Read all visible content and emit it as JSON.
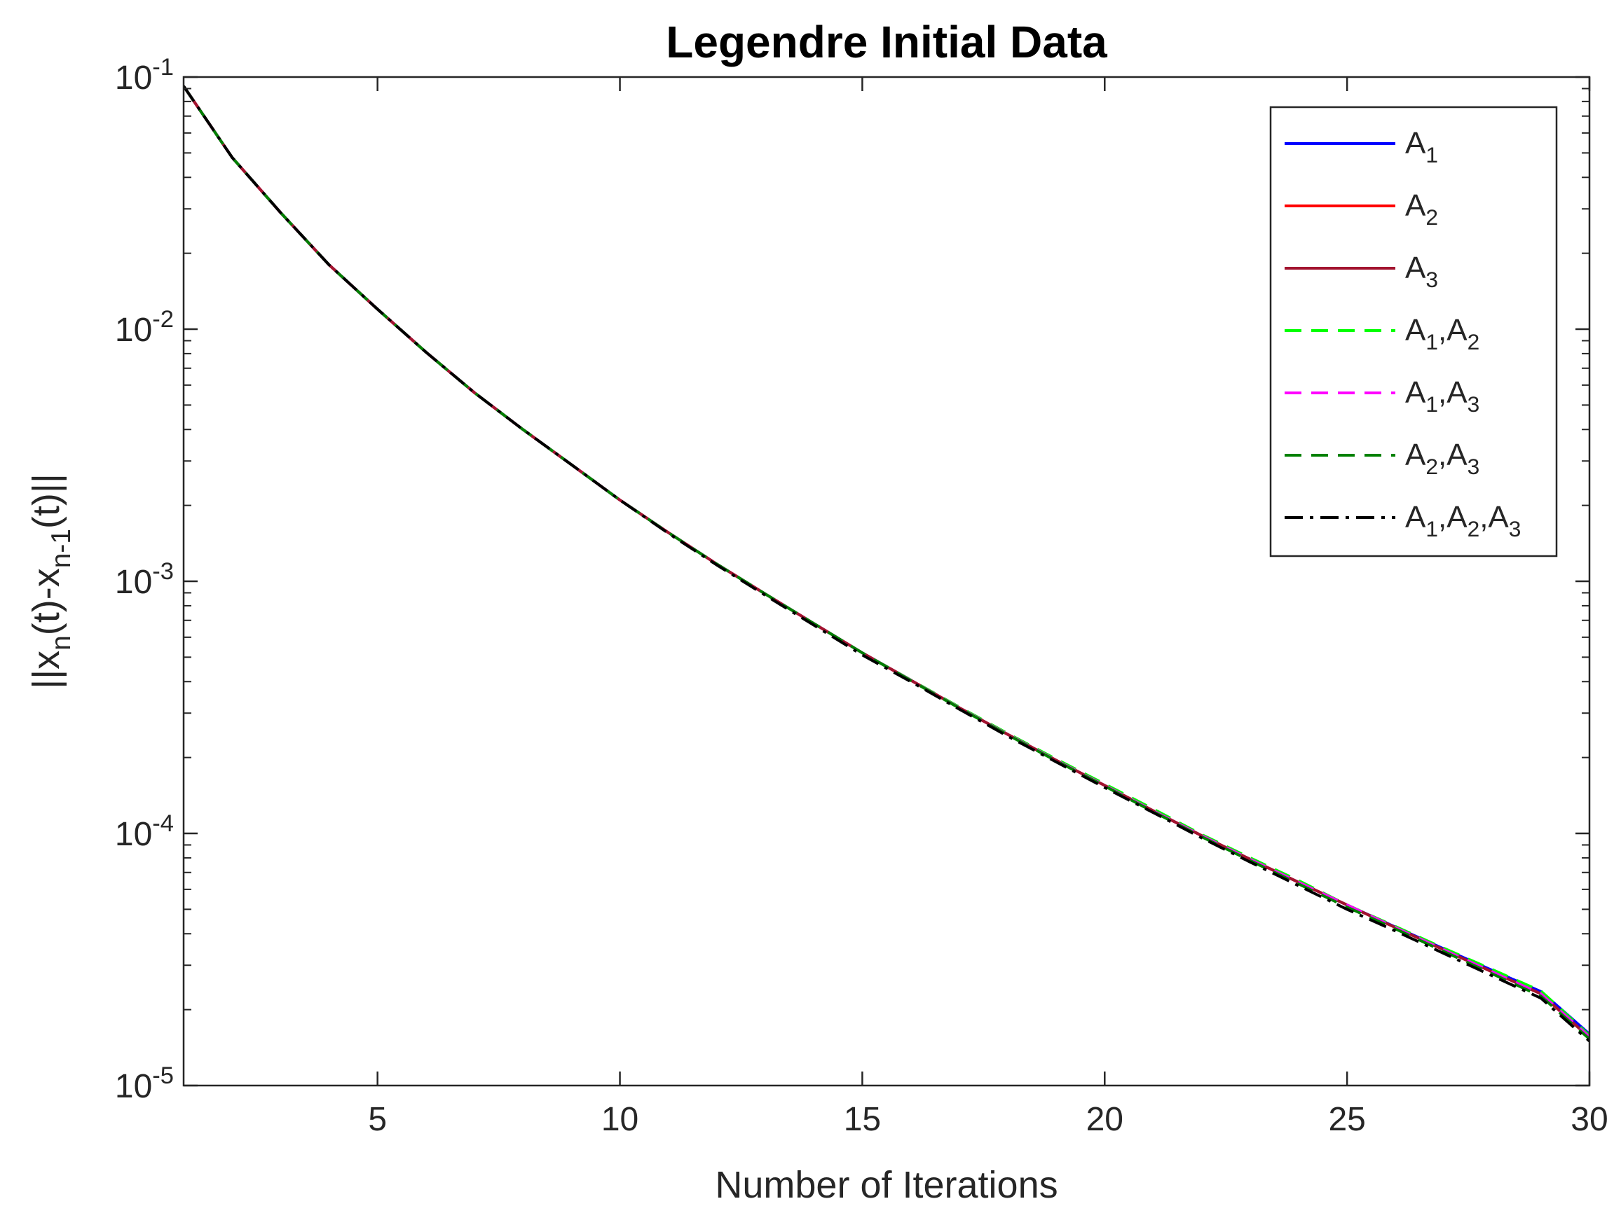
{
  "chart_data": {
    "type": "line",
    "title": "Legendre Initial Data",
    "xlabel": "Number of Iterations",
    "ylabel": {
      "parts": [
        {
          "t": "||x",
          "s": "base"
        },
        {
          "t": "n",
          "s": "sub"
        },
        {
          "t": "(t)-x",
          "s": "base"
        },
        {
          "t": "n-1",
          "s": "sub"
        },
        {
          "t": "(t)||",
          "s": "base"
        }
      ]
    },
    "xlim": [
      1,
      30
    ],
    "ylim": [
      1e-05,
      0.1
    ],
    "yscale": "log",
    "xticks": [
      5,
      10,
      15,
      20,
      25,
      30
    ],
    "yticks": [
      {
        "value": 0.1,
        "base": "10",
        "exp": "-1"
      },
      {
        "value": 0.01,
        "base": "10",
        "exp": "-2"
      },
      {
        "value": 0.001,
        "base": "10",
        "exp": "-3"
      },
      {
        "value": 0.0001,
        "base": "10",
        "exp": "-4"
      },
      {
        "value": 1e-05,
        "base": "10",
        "exp": "-5"
      }
    ],
    "grid": false,
    "legend_position": "top-right",
    "x": [
      1,
      2,
      3,
      4,
      5,
      6,
      7,
      8,
      9,
      10,
      11,
      12,
      13,
      14,
      15,
      16,
      17,
      18,
      19,
      20,
      21,
      22,
      23,
      24,
      25,
      26,
      27,
      28,
      29,
      30
    ],
    "series": [
      {
        "label": [
          {
            "t": "A",
            "s": "base"
          },
          {
            "t": "1",
            "s": "sub"
          }
        ],
        "color": "#0000ff",
        "dash": "solid",
        "values": [
          0.092,
          0.048,
          0.029,
          0.018,
          0.012,
          0.0081,
          0.0056,
          0.004,
          0.0029,
          0.0021,
          0.00156,
          0.00117,
          0.00089,
          0.00068,
          0.00052,
          0.000405,
          0.000315,
          0.000247,
          0.000195,
          0.000155,
          0.000123,
          9.8e-05,
          7.9e-05,
          6.4e-05,
          5.2e-05,
          4.25e-05,
          3.48e-05,
          2.86e-05,
          2.36e-05,
          1.6e-05
        ]
      },
      {
        "label": [
          {
            "t": "A",
            "s": "base"
          },
          {
            "t": "2",
            "s": "sub"
          }
        ],
        "color": "#ff0000",
        "dash": "solid",
        "values": [
          0.092,
          0.048,
          0.029,
          0.018,
          0.012,
          0.0081,
          0.0056,
          0.004,
          0.0029,
          0.0021,
          0.00156,
          0.00117,
          0.00089,
          0.00068,
          0.00052,
          0.000405,
          0.000315,
          0.000247,
          0.000195,
          0.000155,
          0.000123,
          9.8e-05,
          7.9e-05,
          6.4e-05,
          5.2e-05,
          4.23e-05,
          3.45e-05,
          2.82e-05,
          2.31e-05,
          1.55e-05
        ]
      },
      {
        "label": [
          {
            "t": "A",
            "s": "base"
          },
          {
            "t": "3",
            "s": "sub"
          }
        ],
        "color": "#a2142f",
        "dash": "solid",
        "values": [
          0.092,
          0.048,
          0.029,
          0.018,
          0.012,
          0.0081,
          0.0056,
          0.004,
          0.0029,
          0.0021,
          0.00156,
          0.00117,
          0.00089,
          0.00068,
          0.00052,
          0.000405,
          0.000315,
          0.000247,
          0.000195,
          0.000155,
          0.000123,
          9.8e-05,
          7.9e-05,
          6.4e-05,
          5.2e-05,
          4.23e-05,
          3.45e-05,
          2.82e-05,
          2.31e-05,
          1.55e-05
        ]
      },
      {
        "label": [
          {
            "t": "A",
            "s": "base"
          },
          {
            "t": "1",
            "s": "sub"
          },
          {
            "t": ",A",
            "s": "base"
          },
          {
            "t": "2",
            "s": "sub"
          }
        ],
        "color": "#00ff00",
        "dash": "dashed",
        "values": [
          0.092,
          0.048,
          0.029,
          0.018,
          0.012,
          0.0081,
          0.0056,
          0.004,
          0.0029,
          0.0021,
          0.00156,
          0.00117,
          0.00089,
          0.00068,
          0.00052,
          0.000406,
          0.000317,
          0.000249,
          0.000197,
          0.000157,
          0.000125,
          9.9e-05,
          8e-05,
          6.5e-05,
          5.2e-05,
          4.27e-05,
          3.5e-05,
          2.88e-05,
          2.37e-05,
          1.58e-05
        ]
      },
      {
        "label": [
          {
            "t": "A",
            "s": "base"
          },
          {
            "t": "1",
            "s": "sub"
          },
          {
            "t": ",A",
            "s": "base"
          },
          {
            "t": "3",
            "s": "sub"
          }
        ],
        "color": "#ff00ff",
        "dash": "dashed",
        "values": [
          0.092,
          0.048,
          0.029,
          0.018,
          0.012,
          0.0081,
          0.0056,
          0.004,
          0.0029,
          0.0021,
          0.00156,
          0.00117,
          0.00089,
          0.00068,
          0.00052,
          0.000405,
          0.000315,
          0.000247,
          0.000195,
          0.000155,
          0.000123,
          9.8e-05,
          7.9e-05,
          6.4e-05,
          5.2e-05,
          4.23e-05,
          3.45e-05,
          2.82e-05,
          2.31e-05,
          1.56e-05
        ]
      },
      {
        "label": [
          {
            "t": "A",
            "s": "base"
          },
          {
            "t": "2",
            "s": "sub"
          },
          {
            "t": ",A",
            "s": "base"
          },
          {
            "t": "3",
            "s": "sub"
          }
        ],
        "color": "#008000",
        "dash": "dashed",
        "values": [
          0.092,
          0.048,
          0.029,
          0.018,
          0.012,
          0.0081,
          0.0056,
          0.004,
          0.0029,
          0.0021,
          0.00156,
          0.00117,
          0.00089,
          0.00068,
          0.00052,
          0.000404,
          0.000314,
          0.000246,
          0.000194,
          0.000154,
          0.000122,
          9.7e-05,
          7.8e-05,
          6.3e-05,
          5.1e-05,
          4.18e-05,
          3.4e-05,
          2.77e-05,
          2.26e-05,
          1.53e-05
        ]
      },
      {
        "label": [
          {
            "t": "A",
            "s": "base"
          },
          {
            "t": "1",
            "s": "sub"
          },
          {
            "t": ",A",
            "s": "base"
          },
          {
            "t": "2",
            "s": "sub"
          },
          {
            "t": ",A",
            "s": "base"
          },
          {
            "t": "3",
            "s": "sub"
          }
        ],
        "color": "#000000",
        "dash": "dashdot",
        "values": [
          0.092,
          0.048,
          0.029,
          0.018,
          0.012,
          0.0081,
          0.0056,
          0.004,
          0.0029,
          0.0021,
          0.00155,
          0.00116,
          0.00088,
          0.00067,
          0.00051,
          0.0004,
          0.000311,
          0.000243,
          0.000192,
          0.000152,
          0.000121,
          9.6e-05,
          7.7e-05,
          6.2e-05,
          5e-05,
          4.1e-05,
          3.34e-05,
          2.72e-05,
          2.22e-05,
          1.5e-05
        ]
      }
    ]
  }
}
